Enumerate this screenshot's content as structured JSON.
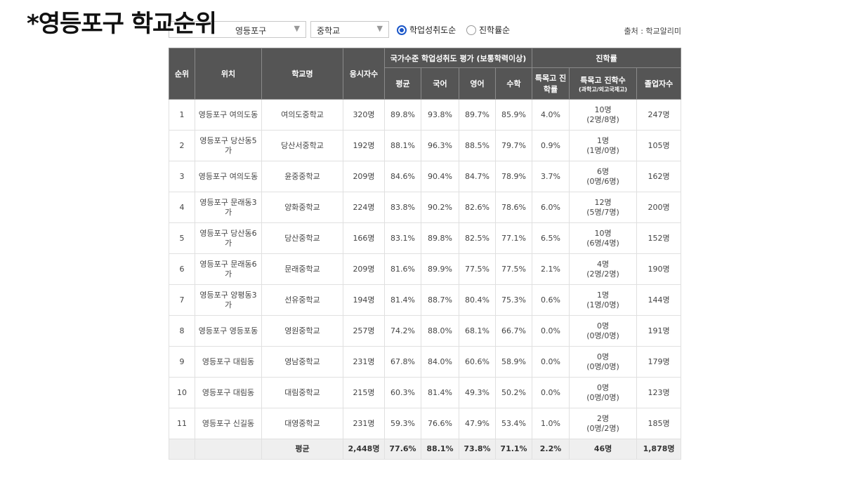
{
  "title": "*영등포구 학교순위",
  "controls": {
    "district_select": "영등포구",
    "level_select": "중학교",
    "radio_1": "학업성취도순",
    "radio_2": "진학률순",
    "source": "출처 : 학교알리미"
  },
  "table": {
    "headers": {
      "rank": "순위",
      "location": "위치",
      "school": "학교명",
      "test_takers": "응시자수",
      "achievement_group": "국가수준 학업성취도 평가 (보통학력이상)",
      "avg": "평균",
      "korean": "국어",
      "english": "영어",
      "math": "수학",
      "admission_group": "진학률",
      "special_rate": "특목고 진학률",
      "special_count": "특목고 진학수",
      "special_count_sub": "(과학고/외고국제고)",
      "graduates": "졸업자수"
    },
    "rows": [
      {
        "rank": "1",
        "location": "영등포구 여의도동",
        "school": "여의도중학교",
        "takers": "320명",
        "avg": "89.8%",
        "kor": "93.8%",
        "eng": "89.7%",
        "math": "85.9%",
        "rate": "4.0%",
        "count": "10명",
        "count_sub": "(2명/8명)",
        "grads": "247명"
      },
      {
        "rank": "2",
        "location": "영등포구 당산동5가",
        "school": "당산서중학교",
        "takers": "192명",
        "avg": "88.1%",
        "kor": "96.3%",
        "eng": "88.5%",
        "math": "79.7%",
        "rate": "0.9%",
        "count": "1명",
        "count_sub": "(1명/0명)",
        "grads": "105명"
      },
      {
        "rank": "3",
        "location": "영등포구 여의도동",
        "school": "윤중중학교",
        "takers": "209명",
        "avg": "84.6%",
        "kor": "90.4%",
        "eng": "84.7%",
        "math": "78.9%",
        "rate": "3.7%",
        "count": "6명",
        "count_sub": "(0명/6명)",
        "grads": "162명"
      },
      {
        "rank": "4",
        "location": "영등포구 문래동3가",
        "school": "양화중학교",
        "takers": "224명",
        "avg": "83.8%",
        "kor": "90.2%",
        "eng": "82.6%",
        "math": "78.6%",
        "rate": "6.0%",
        "count": "12명",
        "count_sub": "(5명/7명)",
        "grads": "200명"
      },
      {
        "rank": "5",
        "location": "영등포구 당산동6가",
        "school": "당산중학교",
        "takers": "166명",
        "avg": "83.1%",
        "kor": "89.8%",
        "eng": "82.5%",
        "math": "77.1%",
        "rate": "6.5%",
        "count": "10명",
        "count_sub": "(6명/4명)",
        "grads": "152명"
      },
      {
        "rank": "6",
        "location": "영등포구 문래동6가",
        "school": "문래중학교",
        "takers": "209명",
        "avg": "81.6%",
        "kor": "89.9%",
        "eng": "77.5%",
        "math": "77.5%",
        "rate": "2.1%",
        "count": "4명",
        "count_sub": "(2명/2명)",
        "grads": "190명"
      },
      {
        "rank": "7",
        "location": "영등포구 양평동3가",
        "school": "선유중학교",
        "takers": "194명",
        "avg": "81.4%",
        "kor": "88.7%",
        "eng": "80.4%",
        "math": "75.3%",
        "rate": "0.6%",
        "count": "1명",
        "count_sub": "(1명/0명)",
        "grads": "144명"
      },
      {
        "rank": "8",
        "location": "영등포구 영등포동",
        "school": "영원중학교",
        "takers": "257명",
        "avg": "74.2%",
        "kor": "88.0%",
        "eng": "68.1%",
        "math": "66.7%",
        "rate": "0.0%",
        "count": "0명",
        "count_sub": "(0명/0명)",
        "grads": "191명"
      },
      {
        "rank": "9",
        "location": "영등포구 대림동",
        "school": "영남중학교",
        "takers": "231명",
        "avg": "67.8%",
        "kor": "84.0%",
        "eng": "60.6%",
        "math": "58.9%",
        "rate": "0.0%",
        "count": "0명",
        "count_sub": "(0명/0명)",
        "grads": "179명"
      },
      {
        "rank": "10",
        "location": "영등포구 대림동",
        "school": "대림중학교",
        "takers": "215명",
        "avg": "60.3%",
        "kor": "81.4%",
        "eng": "49.3%",
        "math": "50.2%",
        "rate": "0.0%",
        "count": "0명",
        "count_sub": "(0명/0명)",
        "grads": "123명"
      },
      {
        "rank": "11",
        "location": "영등포구 신길동",
        "school": "대영중학교",
        "takers": "231명",
        "avg": "59.3%",
        "kor": "76.6%",
        "eng": "47.9%",
        "math": "53.4%",
        "rate": "1.0%",
        "count": "2명",
        "count_sub": "(0명/2명)",
        "grads": "185명"
      }
    ],
    "average_row": {
      "label": "평균",
      "takers": "2,448명",
      "avg": "77.6%",
      "kor": "88.1%",
      "eng": "73.8%",
      "math": "71.1%",
      "rate": "2.2%",
      "count": "46명",
      "grads": "1,878명"
    }
  }
}
